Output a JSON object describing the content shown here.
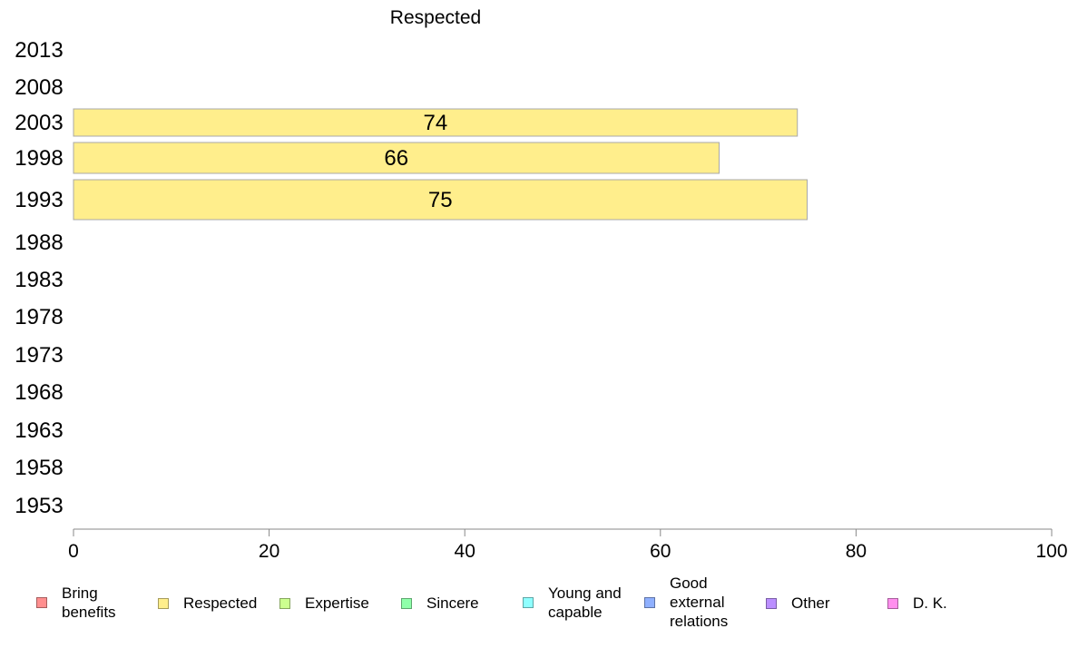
{
  "chart_data": {
    "type": "bar",
    "orientation": "horizontal",
    "title": "Respected",
    "categories": [
      "2013",
      "2008",
      "2003",
      "1998",
      "1993",
      "1988",
      "1983",
      "1978",
      "1973",
      "1968",
      "1963",
      "1958",
      "1953"
    ],
    "series": [
      {
        "name": "Respected",
        "color": "#ffee8c",
        "values": [
          null,
          null,
          74,
          66,
          75,
          null,
          null,
          null,
          null,
          null,
          null,
          null,
          null
        ]
      }
    ],
    "data_labels": [
      "",
      "",
      "74",
      "66",
      "75",
      "",
      "",
      "",
      "",
      "",
      "",
      "",
      ""
    ],
    "xlim": [
      0,
      100
    ],
    "xticks": [
      "0",
      "20",
      "40",
      "60",
      "80",
      "100"
    ],
    "grid": false,
    "legend_position": "bottom"
  },
  "legend": [
    {
      "label": "Bring\nbenefits",
      "color": "#ff8f8f"
    },
    {
      "label": "Respected",
      "color": "#ffee8c"
    },
    {
      "label": "Expertise",
      "color": "#ccff8f"
    },
    {
      "label": "Sincere",
      "color": "#8fffaa"
    },
    {
      "label": "Young and\ncapable",
      "color": "#8fffff"
    },
    {
      "label": "Good\nexternal\nrelations",
      "color": "#8fb0ff"
    },
    {
      "label": "Other",
      "color": "#bb8fff"
    },
    {
      "label": "D. K.",
      "color": "#ff8fee"
    }
  ]
}
